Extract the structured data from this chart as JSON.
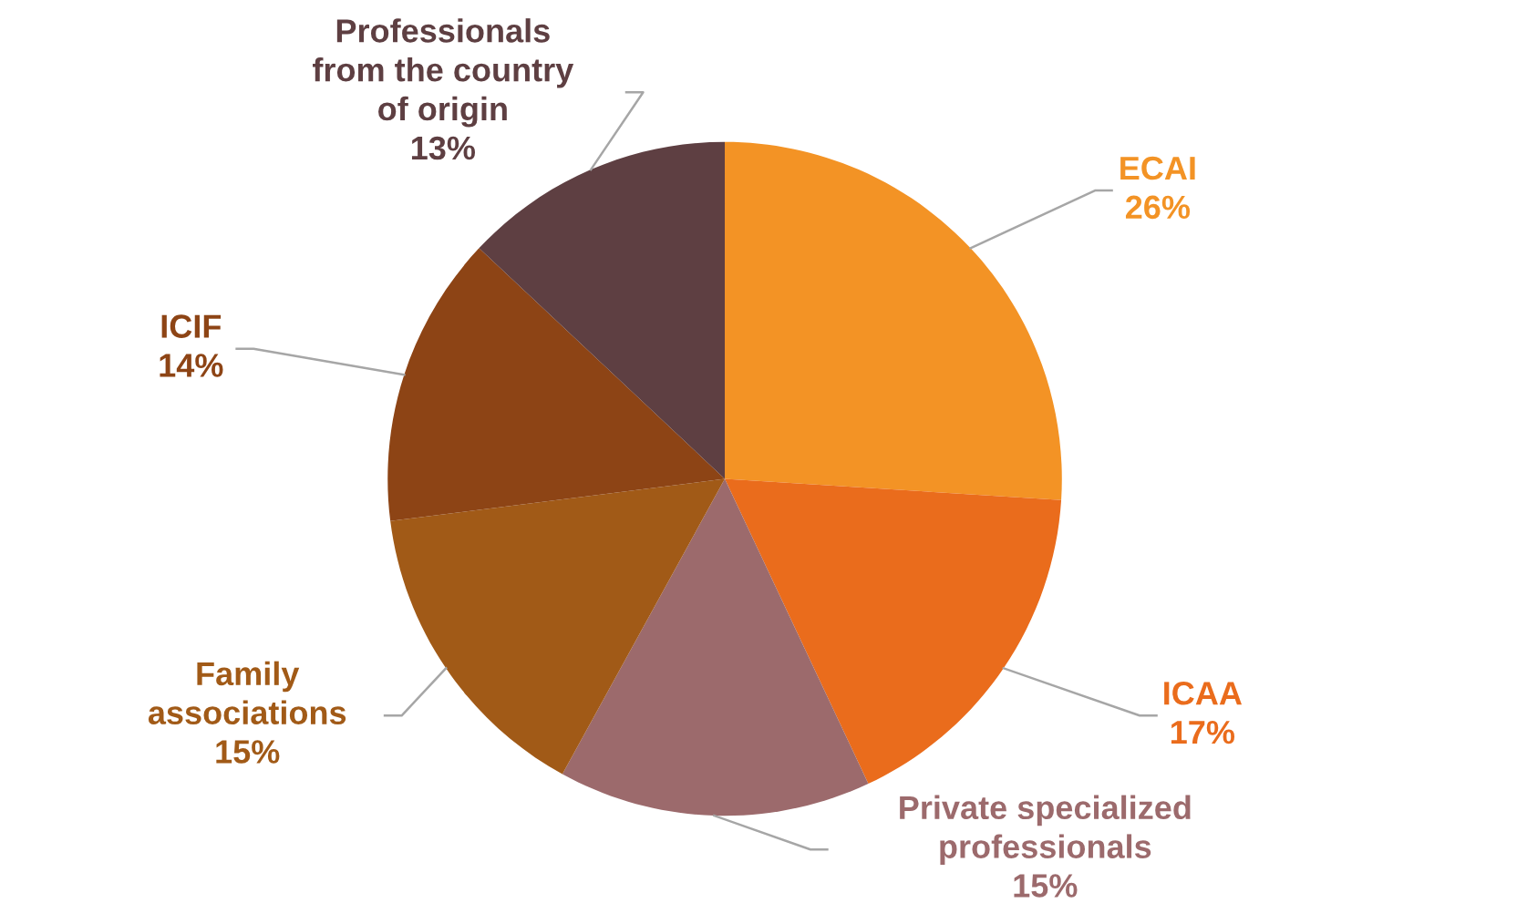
{
  "chart_data": {
    "type": "pie",
    "categories": [
      "ECAI",
      "ICAA",
      "Private specialized professionals",
      "Family associations",
      "ICIF",
      "Professionals from the country of origin"
    ],
    "values": [
      26,
      17,
      15,
      15,
      14,
      13
    ],
    "value_labels": [
      "26%",
      "17%",
      "15%",
      "15%",
      "14%",
      "13%"
    ],
    "colors": [
      "#f39325",
      "#ea6c1c",
      "#9c6a6c",
      "#a15a17",
      "#8d4415",
      "#5e3f42"
    ],
    "legend": false
  }
}
